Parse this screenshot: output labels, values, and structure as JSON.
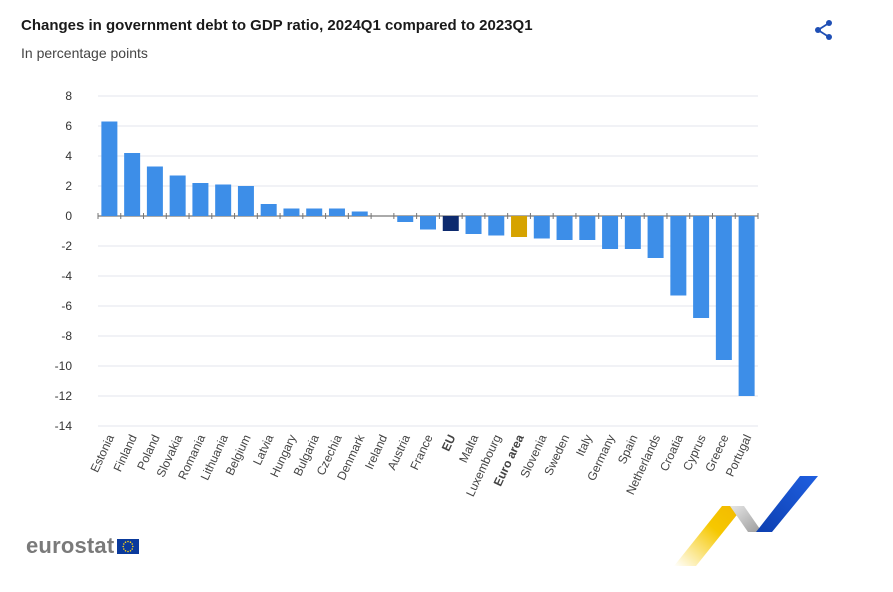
{
  "header": {
    "title": "Changes in government debt to GDP ratio, 2024Q1 compared to 2023Q1",
    "subtitle": "In percentage points"
  },
  "icons": {
    "share": "share-icon"
  },
  "logo": {
    "text": "eurostat"
  },
  "colors": {
    "bar": "#3d8ee8",
    "eu": "#0d2a6e",
    "euro_area": "#d6a300",
    "share": "#1f4fb5",
    "grid": "#e3e6ee"
  },
  "chart_data": {
    "type": "bar",
    "title": "Changes in government debt to GDP ratio, 2024Q1 compared to 2023Q1",
    "subtitle": "In percentage points",
    "ylim": [
      -14,
      8
    ],
    "yticks": [
      8,
      6,
      4,
      2,
      0,
      -2,
      -4,
      -6,
      -8,
      -10,
      -12,
      -14
    ],
    "grid": true,
    "categories": [
      "Estonia",
      "Finland",
      "Poland",
      "Slovakia",
      "Romania",
      "Lithuania",
      "Belgium",
      "Latvia",
      "Hungary",
      "Bulgaria",
      "Czechia",
      "Denmark",
      "Ireland",
      "Austria",
      "France",
      "EU",
      "Malta",
      "Luxembourg",
      "Euro area",
      "Slovenia",
      "Sweden",
      "Italy",
      "Germany",
      "Spain",
      "Netherlands",
      "Croatia",
      "Cyprus",
      "Greece",
      "Portugal"
    ],
    "values": [
      6.3,
      4.2,
      3.3,
      2.7,
      2.2,
      2.1,
      2.0,
      0.8,
      0.5,
      0.5,
      0.5,
      0.3,
      0.0,
      -0.4,
      -0.9,
      -1.0,
      -1.2,
      -1.3,
      -1.4,
      -1.5,
      -1.6,
      -1.6,
      -2.2,
      -2.2,
      -2.8,
      -5.3,
      -6.8,
      -9.6,
      -12.0
    ],
    "highlight": {
      "EU": "eu",
      "Euro area": "euro_area"
    },
    "bold_categories": [
      "EU",
      "Euro area"
    ]
  }
}
